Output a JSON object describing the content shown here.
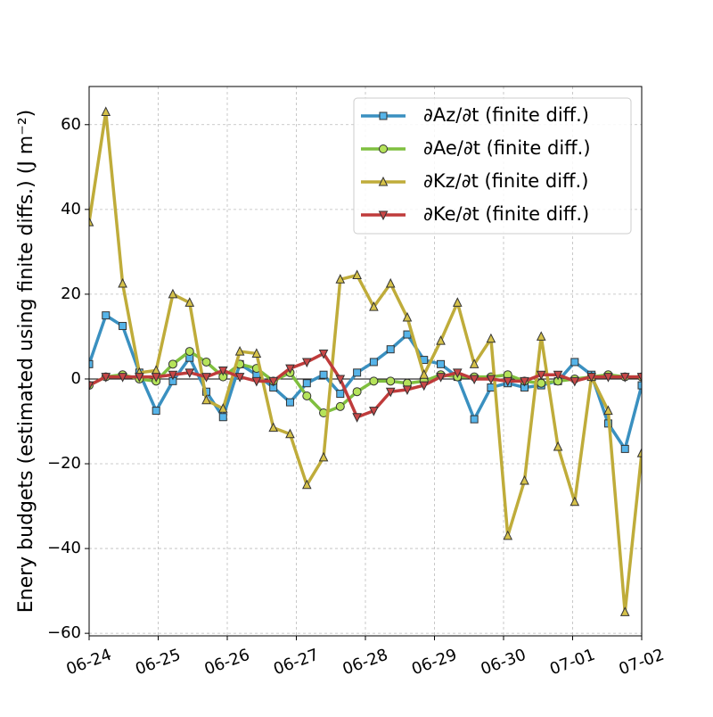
{
  "chart_data": {
    "type": "line",
    "ylabel": "Enery budgets (estimated using finite diffs.) (J m⁻²)",
    "x": [
      0,
      0.242,
      0.485,
      0.727,
      0.97,
      1.212,
      1.455,
      1.697,
      1.939,
      2.182,
      2.424,
      2.667,
      2.909,
      3.152,
      3.394,
      3.636,
      3.879,
      4.121,
      4.364,
      4.606,
      4.848,
      5.091,
      5.333,
      5.576,
      5.818,
      6.061,
      6.303,
      6.545,
      6.788,
      7.03,
      7.273,
      7.515,
      7.758,
      8
    ],
    "xlim": [
      0,
      8
    ],
    "xticks": [
      {
        "value": 0,
        "label": "06-24"
      },
      {
        "value": 1,
        "label": "06-25"
      },
      {
        "value": 2,
        "label": "06-26"
      },
      {
        "value": 3,
        "label": "06-27"
      },
      {
        "value": 4,
        "label": "06-28"
      },
      {
        "value": 5,
        "label": "06-29"
      },
      {
        "value": 6,
        "label": "06-30"
      },
      {
        "value": 7,
        "label": "07-01"
      },
      {
        "value": 8,
        "label": "07-02"
      }
    ],
    "ylim": [
      -60.6,
      69
    ],
    "yticks": [
      {
        "value": -60,
        "label": "−60"
      },
      {
        "value": -40,
        "label": "−40"
      },
      {
        "value": -20,
        "label": "−20"
      },
      0,
      20,
      40,
      60
    ],
    "grid": true,
    "legend": "upper right",
    "series": [
      {
        "name": "∂Az/∂t (finite diff.)",
        "color": "#3a90c0",
        "marker_color": "#56b4e9",
        "marker": "square",
        "values": [
          3.5,
          15,
          12.5,
          1.5,
          -7.5,
          -0.5,
          5,
          -3,
          -9,
          3.5,
          1,
          -2,
          -5.5,
          -1,
          1,
          -3.5,
          1.5,
          4,
          7,
          10.5,
          4.5,
          3.5,
          0.5,
          -9.5,
          -2,
          -1,
          -2,
          -1.5,
          -0.5,
          4,
          1,
          -10.5,
          -16.5,
          -1.5
        ]
      },
      {
        "name": "∂Ae/∂t (finite diff.)",
        "color": "#7fbf3f",
        "marker_color": "#b5e35a",
        "marker": "circle",
        "values": [
          -1.5,
          0.5,
          1,
          0,
          -0.5,
          3.5,
          6.5,
          4,
          0.5,
          3.5,
          2.5,
          -0.5,
          1.5,
          -4,
          -8,
          -6.5,
          -3,
          -0.5,
          -0.5,
          -1,
          -0.5,
          1,
          0.5,
          0.5,
          0.5,
          1,
          -0.5,
          -1,
          -0.5,
          0,
          0.5,
          1,
          0.5,
          0.5
        ]
      },
      {
        "name": "∂Kz/∂t (finite diff.)",
        "color": "#bfac3a",
        "marker_color": "#d6c24a",
        "marker": "triangle-up",
        "values": [
          37,
          63,
          22.5,
          1.5,
          2,
          20,
          18,
          -5,
          -7,
          6.5,
          6,
          -11.5,
          -13,
          -25,
          -18.5,
          23.5,
          24.5,
          17,
          22.5,
          14.5,
          1,
          9,
          18,
          3.5,
          9.5,
          -37,
          -24,
          10,
          -16,
          -29,
          0.5,
          -7.5,
          -55,
          -17.5
        ]
      },
      {
        "name": "∂Ke/∂t (finite diff.)",
        "color": "#bf3b3b",
        "marker_color": "#c94848",
        "marker": "triangle-down",
        "values": [
          -1.5,
          0.5,
          0.5,
          0.5,
          0.5,
          1,
          1.5,
          0.5,
          2,
          0.5,
          -0.5,
          -0.5,
          2.5,
          4,
          6,
          0,
          -9,
          -7.5,
          -3,
          -2.5,
          -1.5,
          0.5,
          1.5,
          0,
          0,
          -0.5,
          -0.5,
          1,
          1,
          -0.5,
          0.5,
          0.5,
          0.5,
          0.5
        ]
      }
    ]
  }
}
